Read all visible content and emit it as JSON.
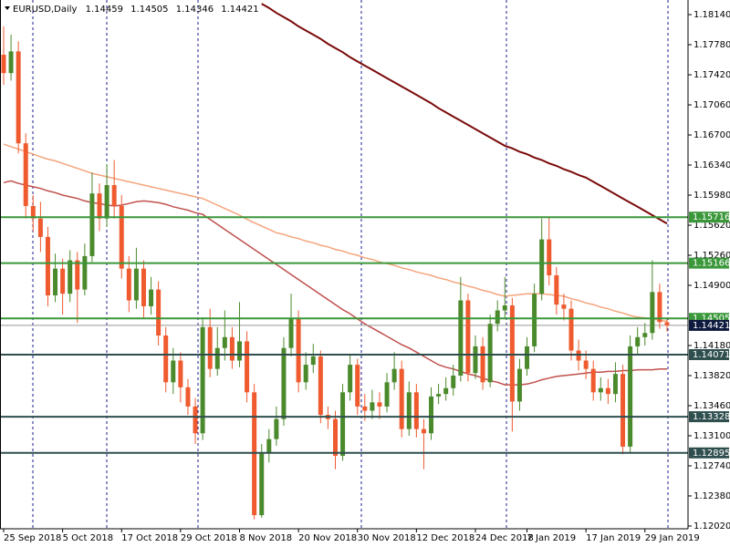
{
  "chart_data": {
    "type": "candlestick",
    "title": "EURUSD,Daily",
    "header_values": [
      1.14459,
      1.14505,
      1.14346,
      1.14421
    ],
    "categories": [
      "25 Sep 2018",
      null,
      null,
      null,
      null,
      null,
      null,
      null,
      "5 Oct 2018",
      null,
      null,
      null,
      null,
      null,
      null,
      null,
      "17 Oct 2018",
      null,
      null,
      null,
      null,
      null,
      null,
      null,
      "29 Oct 2018",
      null,
      null,
      null,
      null,
      null,
      null,
      null,
      "8 Nov 2018",
      null,
      null,
      null,
      null,
      null,
      null,
      null,
      "20 Nov 2018",
      null,
      null,
      null,
      null,
      null,
      null,
      null,
      "30 Nov 2018",
      null,
      null,
      null,
      null,
      null,
      null,
      null,
      "12 Dec 2018",
      null,
      null,
      null,
      null,
      null,
      null,
      null,
      "24 Dec 2018",
      null,
      null,
      null,
      null,
      null,
      null,
      "7 Jan 2019",
      null,
      null,
      null,
      null,
      null,
      null,
      null,
      "17 Jan 2019",
      null,
      null,
      null,
      null,
      null,
      null,
      null,
      "29 Jan 2019",
      null,
      null,
      null
    ],
    "open": [
      1.1766,
      1.1744,
      1.177,
      1.166,
      1.1585,
      1.157,
      1.1548,
      1.1478,
      1.151,
      1.148,
      1.152,
      1.1485,
      1.1525,
      1.16,
      1.157,
      1.161,
      1.1585,
      1.151,
      1.1472,
      1.151,
      1.1465,
      1.1485,
      1.143,
      1.1374,
      1.14,
      1.1368,
      1.1345,
      1.1313,
      1.144,
      1.139,
      1.1415,
      1.1428,
      1.14,
      1.1423,
      1.1362,
      1.1215,
      1.129,
      1.1306,
      1.133,
      1.1415,
      1.145,
      1.1374,
      1.1395,
      1.1405,
      1.1335,
      1.133,
      1.1286,
      1.1362,
      1.1395,
      1.1345,
      1.134,
      1.135,
      1.1345,
      1.1374,
      1.139,
      1.1318,
      1.1362,
      1.1318,
      1.1313,
      1.1357,
      1.136,
      1.1367,
      1.1382,
      1.1472,
      1.1385,
      1.1417,
      1.1374,
      1.1444,
      1.146,
      1.1466,
      1.1351,
      1.139,
      1.1417,
      1.148,
      1.1545,
      1.1502,
      1.1467,
      1.1462,
      1.1412,
      1.14,
      1.139,
      1.1362,
      1.1367,
      1.136,
      1.1384,
      1.1297,
      1.1417,
      1.1428,
      1.1433,
      1.1482,
      1.14459
    ],
    "high": [
      1.18,
      1.179,
      1.1782,
      1.1672,
      1.1598,
      1.159,
      1.156,
      1.1528,
      1.1522,
      1.1532,
      1.153,
      1.154,
      1.1625,
      1.1612,
      1.1635,
      1.164,
      1.1598,
      1.1525,
      1.1535,
      1.152,
      1.15,
      1.1495,
      1.144,
      1.1415,
      1.141,
      1.1378,
      1.1355,
      1.1452,
      1.1462,
      1.144,
      1.146,
      1.144,
      1.147,
      1.1435,
      1.1372,
      1.13,
      1.1318,
      1.1345,
      1.1428,
      1.148,
      1.146,
      1.141,
      1.142,
      1.1412,
      1.1345,
      1.134,
      1.1372,
      1.1408,
      1.1402,
      1.136,
      1.1365,
      1.1362,
      1.1385,
      1.141,
      1.14,
      1.1375,
      1.1372,
      1.133,
      1.1368,
      1.1372,
      1.138,
      1.1395,
      1.15,
      1.148,
      1.143,
      1.1428,
      1.1455,
      1.1472,
      1.15,
      1.1475,
      1.1402,
      1.1428,
      1.1492,
      1.157,
      1.1572,
      1.1512,
      1.148,
      1.1472,
      1.1425,
      1.1412,
      1.14,
      1.138,
      1.1378,
      1.1398,
      1.1395,
      1.143,
      1.144,
      1.1445,
      1.152,
      1.1492,
      1.14505
    ],
    "low": [
      1.173,
      1.1735,
      1.1648,
      1.157,
      1.1555,
      1.153,
      1.1465,
      1.147,
      1.1455,
      1.147,
      1.1445,
      1.1478,
      1.1518,
      1.1555,
      1.156,
      1.157,
      1.1498,
      1.1458,
      1.1462,
      1.145,
      1.1455,
      1.1418,
      1.1362,
      1.136,
      1.135,
      1.1335,
      1.13,
      1.1305,
      1.138,
      1.1382,
      1.14,
      1.139,
      1.1392,
      1.135,
      1.121,
      1.1212,
      1.1278,
      1.1298,
      1.1322,
      1.1405,
      1.1362,
      1.1365,
      1.1385,
      1.1325,
      1.1318,
      1.127,
      1.128,
      1.1352,
      1.1335,
      1.1328,
      1.133,
      1.133,
      1.1338,
      1.1365,
      1.1308,
      1.131,
      1.1308,
      1.127,
      1.1305,
      1.1348,
      1.1352,
      1.1358,
      1.1375,
      1.1375,
      1.1378,
      1.1365,
      1.1368,
      1.1435,
      1.145,
      1.1315,
      1.134,
      1.1382,
      1.141,
      1.1472,
      1.149,
      1.1455,
      1.1448,
      1.14,
      1.1388,
      1.1378,
      1.1352,
      1.1352,
      1.1348,
      1.135,
      1.1288,
      1.129,
      1.1408,
      1.1418,
      1.1425,
      1.1438,
      1.14346
    ],
    "close": [
      1.1744,
      1.177,
      1.166,
      1.1585,
      1.157,
      1.1548,
      1.1478,
      1.151,
      1.148,
      1.152,
      1.1485,
      1.1525,
      1.16,
      1.157,
      1.161,
      1.1585,
      1.151,
      1.1472,
      1.151,
      1.1465,
      1.1485,
      1.143,
      1.1374,
      1.14,
      1.1368,
      1.1345,
      1.1313,
      1.144,
      1.139,
      1.1415,
      1.1428,
      1.14,
      1.1423,
      1.1362,
      1.1215,
      1.129,
      1.1306,
      1.133,
      1.1415,
      1.145,
      1.1374,
      1.1395,
      1.1405,
      1.1335,
      1.133,
      1.1286,
      1.1362,
      1.1395,
      1.1345,
      1.134,
      1.135,
      1.1345,
      1.1374,
      1.139,
      1.1318,
      1.1362,
      1.1318,
      1.1313,
      1.1357,
      1.136,
      1.1367,
      1.1382,
      1.1472,
      1.1385,
      1.1417,
      1.1374,
      1.1444,
      1.146,
      1.1466,
      1.1351,
      1.139,
      1.1417,
      1.148,
      1.1545,
      1.1502,
      1.1467,
      1.1462,
      1.1412,
      1.14,
      1.139,
      1.1362,
      1.1367,
      1.136,
      1.1384,
      1.1297,
      1.1417,
      1.1428,
      1.1433,
      1.1482,
      1.1446,
      1.14421
    ],
    "up_color": "#4b8a2c",
    "down_color": "#ef5a2f",
    "moving_averages": [
      {
        "color": "#7b0a0a",
        "values": [
          null,
          null,
          null,
          null,
          null,
          null,
          null,
          null,
          null,
          null,
          null,
          null,
          null,
          null,
          null,
          null,
          null,
          null,
          null,
          null,
          null,
          null,
          null,
          null,
          null,
          null,
          null,
          null,
          null,
          null,
          null,
          null,
          null,
          null,
          null,
          1.1827,
          1.1822,
          1.1816,
          1.1811,
          1.1806,
          1.18,
          1.1795,
          1.179,
          1.1785,
          1.1779,
          1.1774,
          1.1769,
          1.1763,
          1.1758,
          1.1753,
          1.1748,
          1.1743,
          1.1738,
          1.1733,
          1.1728,
          1.1723,
          1.1718,
          1.1713,
          1.1708,
          1.1702,
          1.1697,
          1.1692,
          1.1687,
          1.1682,
          1.1677,
          1.1672,
          1.1667,
          1.1662,
          1.1657,
          1.1654,
          1.165,
          1.1647,
          1.1643,
          1.164,
          1.1636,
          1.1633,
          1.1629,
          1.1626,
          1.1622,
          1.1619,
          1.1614,
          1.1609,
          1.1604,
          1.1599,
          1.1594,
          1.1589,
          1.1584,
          1.1579,
          1.1574,
          1.1569,
          1.1564
        ]
      },
      {
        "color": "#f5a47c",
        "values": [
          1.1659,
          1.1656,
          1.1653,
          1.165,
          1.1647,
          1.1644,
          1.1641,
          1.1639,
          1.1636,
          1.1633,
          1.163,
          1.1627,
          1.1624,
          1.1622,
          1.162,
          1.1618,
          1.1616,
          1.1614,
          1.1612,
          1.161,
          1.1608,
          1.1606,
          1.1604,
          1.1602,
          1.16,
          1.1598,
          1.1596,
          1.1594,
          1.159,
          1.1586,
          1.1582,
          1.1578,
          1.1574,
          1.1569,
          1.1565,
          1.1561,
          1.1557,
          1.1553,
          1.1551,
          1.1548,
          1.1546,
          1.1543,
          1.1541,
          1.1538,
          1.1536,
          1.1533,
          1.1531,
          1.1528,
          1.1526,
          1.1523,
          1.1521,
          1.1518,
          1.1516,
          1.1514,
          1.1511,
          1.1509,
          1.1506,
          1.1504,
          1.1502,
          1.1499,
          1.1497,
          1.1494,
          1.1492,
          1.1489,
          1.1487,
          1.1484,
          1.1482,
          1.1479,
          1.1477,
          1.1478,
          1.1479,
          1.148,
          1.148,
          1.148,
          1.1479,
          1.1478,
          1.1477,
          1.1474,
          1.1472,
          1.1469,
          1.1467,
          1.1464,
          1.1462,
          1.1459,
          1.1457,
          1.1454,
          1.1452,
          1.1451,
          1.145,
          1.1448,
          1.1447
        ]
      },
      {
        "color": "#c0504d",
        "values": [
          1.1613,
          1.1615,
          1.1612,
          1.161,
          1.1608,
          1.1606,
          1.1603,
          1.1601,
          1.1598,
          1.1596,
          1.1594,
          1.1591,
          1.1589,
          1.1588,
          1.1586,
          1.1585,
          1.1586,
          1.1588,
          1.159,
          1.1591,
          1.159,
          1.1589,
          1.1587,
          1.1584,
          1.1582,
          1.158,
          1.1577,
          1.1575,
          1.1569,
          1.1563,
          1.1557,
          1.1551,
          1.1545,
          1.1539,
          1.1533,
          1.1527,
          1.1521,
          1.1515,
          1.1509,
          1.1503,
          1.1497,
          1.1491,
          1.1485,
          1.1479,
          1.1473,
          1.1467,
          1.1461,
          1.1456,
          1.145,
          1.1444,
          1.1439,
          1.1434,
          1.1429,
          1.1424,
          1.1419,
          1.1415,
          1.141,
          1.1405,
          1.14,
          1.1395,
          1.1392,
          1.139,
          1.1387,
          1.1384,
          1.1382,
          1.1379,
          1.1376,
          1.1374,
          1.1371,
          1.1371,
          1.1371,
          1.1372,
          1.1374,
          1.1377,
          1.1379,
          1.1381,
          1.1382,
          1.1383,
          1.1384,
          1.1385,
          1.1386,
          1.1386,
          1.1387,
          1.1387,
          1.1388,
          1.1388,
          1.1389,
          1.1389,
          1.1389,
          1.139,
          1.139
        ]
      }
    ],
    "levels": [
      {
        "value": 1.15716,
        "color": "#3a973a"
      },
      {
        "value": 1.15166,
        "color": "#3a973a"
      },
      {
        "value": 1.14505,
        "color": "#3a973a"
      },
      {
        "value": 1.14071,
        "color": "#2f4f4f"
      },
      {
        "value": 1.13328,
        "color": "#2f4f4f"
      },
      {
        "value": 1.12895,
        "color": "#2f4f4f"
      }
    ],
    "price_line": {
      "value": 1.14421,
      "color": "#0d1a3d"
    },
    "ylim": [
      1.11987,
      1.18315
    ],
    "yticks": [
      {
        "value": 1.1814,
        "label": "1.18140"
      },
      {
        "value": 1.1778,
        "label": "1.17780"
      },
      {
        "value": 1.1742,
        "label": "1.17420"
      },
      {
        "value": 1.1706,
        "label": "1.17060"
      },
      {
        "value": 1.167,
        "label": "1.16700"
      },
      {
        "value": 1.1634,
        "label": "1.16340"
      },
      {
        "value": 1.1598,
        "label": "1.15980"
      },
      {
        "value": 1.1562,
        "label": "1.15620"
      },
      {
        "value": 1.1526,
        "label": "1.15260"
      },
      {
        "value": 1.149,
        "label": "1.14900"
      },
      {
        "value": 1.1418,
        "label": "1.14180"
      },
      {
        "value": 1.1382,
        "label": "1.13820"
      },
      {
        "value": 1.1346,
        "label": "1.13460"
      },
      {
        "value": 1.131,
        "label": "1.13100"
      },
      {
        "value": 1.1274,
        "label": "1.12740"
      },
      {
        "value": 1.1238,
        "label": "1.12380"
      },
      {
        "value": 1.1202,
        "label": "1.12020"
      }
    ]
  }
}
